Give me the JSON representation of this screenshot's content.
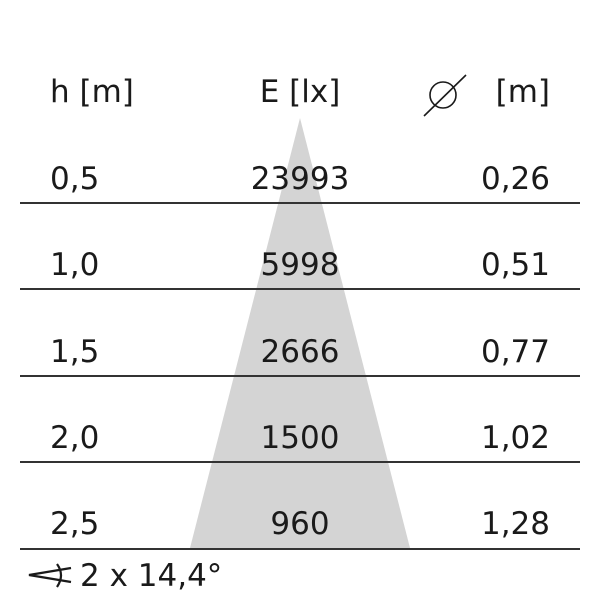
{
  "headers": {
    "height": "h [m]",
    "illuminance": "E [lx]",
    "diameter_icon": "diameter-icon",
    "diameter_unit": "[m]"
  },
  "rows": [
    {
      "h": "0,5",
      "E": "23993",
      "d": "0,26"
    },
    {
      "h": "1,0",
      "E": "5998",
      "d": "0,51"
    },
    {
      "h": "1,5",
      "E": "2666",
      "d": "0,77"
    },
    {
      "h": "2,0",
      "E": "1500",
      "d": "1,02"
    },
    {
      "h": "2,5",
      "E": "960",
      "d": "1,28"
    }
  ],
  "beam_angle": {
    "icon": "angle-icon",
    "text": "2 x 14,4°"
  },
  "colors": {
    "cone": "#d4d4d4",
    "lines": "#333333",
    "text": "#1a1a1a"
  }
}
